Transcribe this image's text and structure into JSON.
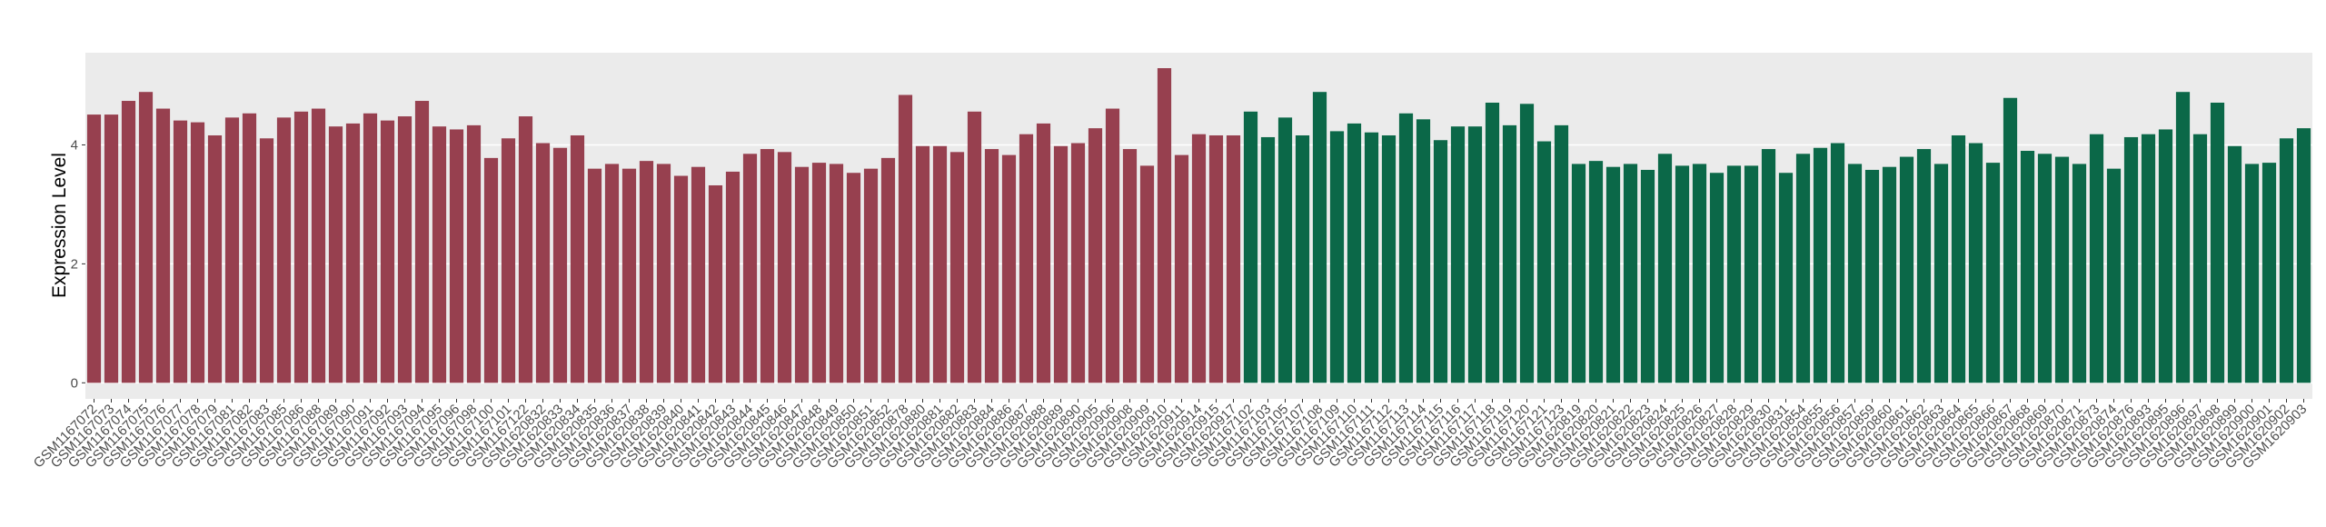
{
  "chart_data": {
    "type": "bar",
    "y_label": "Expression Level",
    "categories": [
      "GSM1167072",
      "GSM1167073",
      "GSM1167074",
      "GSM1167075",
      "GSM1167076",
      "GSM1167077",
      "GSM1167078",
      "GSM1167079",
      "GSM1167081",
      "GSM1167082",
      "GSM1167083",
      "GSM1167085",
      "GSM1167086",
      "GSM1167088",
      "GSM1167089",
      "GSM1167090",
      "GSM1167091",
      "GSM1167092",
      "GSM1167093",
      "GSM1167094",
      "GSM1167095",
      "GSM1167096",
      "GSM1167098",
      "GSM1167100",
      "GSM1167101",
      "GSM1167122",
      "GSM1620832",
      "GSM1620833",
      "GSM1620834",
      "GSM1620835",
      "GSM1620836",
      "GSM1620837",
      "GSM1620838",
      "GSM1620839",
      "GSM1620840",
      "GSM1620841",
      "GSM1620842",
      "GSM1620843",
      "GSM1620844",
      "GSM1620845",
      "GSM1620846",
      "GSM1620847",
      "GSM1620848",
      "GSM1620849",
      "GSM1620850",
      "GSM1620851",
      "GSM1620852",
      "GSM1620878",
      "GSM1620880",
      "GSM1620881",
      "GSM1620882",
      "GSM1620883",
      "GSM1620884",
      "GSM1620886",
      "GSM1620887",
      "GSM1620888",
      "GSM1620889",
      "GSM1620890",
      "GSM1620905",
      "GSM1620906",
      "GSM1620908",
      "GSM1620909",
      "GSM1620910",
      "GSM1620911",
      "GSM1620914",
      "GSM1620915",
      "GSM1620917",
      "GSM1167102",
      "GSM1167103",
      "GSM1167105",
      "GSM1167107",
      "GSM1167108",
      "GSM1167109",
      "GSM1167110",
      "GSM1167111",
      "GSM1167112",
      "GSM1167113",
      "GSM1167114",
      "GSM1167115",
      "GSM1167116",
      "GSM1167117",
      "GSM1167118",
      "GSM1167119",
      "GSM1167120",
      "GSM1167121",
      "GSM1167123",
      "GSM1620819",
      "GSM1620820",
      "GSM1620821",
      "GSM1620822",
      "GSM1620823",
      "GSM1620824",
      "GSM1620825",
      "GSM1620826",
      "GSM1620827",
      "GSM1620828",
      "GSM1620829",
      "GSM1620830",
      "GSM1620831",
      "GSM1620854",
      "GSM1620855",
      "GSM1620856",
      "GSM1620857",
      "GSM1620859",
      "GSM1620860",
      "GSM1620861",
      "GSM1620862",
      "GSM1620863",
      "GSM1620864",
      "GSM1620865",
      "GSM1620866",
      "GSM1620867",
      "GSM1620868",
      "GSM1620869",
      "GSM1620870",
      "GSM1620871",
      "GSM1620873",
      "GSM1620874",
      "GSM1620876",
      "GSM1620893",
      "GSM1620895",
      "GSM1620896",
      "GSM1620897",
      "GSM1620898",
      "GSM1620899",
      "GSM1620900",
      "GSM1620901",
      "GSM1620902",
      "GSM1620903"
    ],
    "series": [
      {
        "color": "#97404f",
        "values": [
          4.51,
          4.51,
          4.74,
          4.89,
          4.61,
          4.41,
          4.38,
          4.16,
          4.46,
          4.53,
          4.11,
          4.46,
          4.56,
          4.61,
          4.31,
          4.36,
          4.53,
          4.41,
          4.48,
          4.74,
          4.31,
          4.26,
          4.33,
          3.78,
          4.11,
          4.48,
          4.03,
          3.95,
          4.16,
          3.6,
          3.68,
          3.6,
          3.73,
          3.68,
          3.48,
          3.63,
          3.32,
          3.55,
          3.85,
          3.93,
          3.88,
          3.63,
          3.7,
          3.68,
          3.53,
          3.6,
          3.78,
          4.84,
          3.98,
          3.98,
          3.88,
          4.56,
          3.93,
          3.83,
          4.18,
          4.36,
          3.98,
          4.03,
          4.28,
          4.61,
          3.93,
          3.65,
          5.29,
          3.83,
          4.18,
          4.16,
          4.16,
          null,
          null,
          null,
          null,
          null,
          null,
          null,
          null,
          null,
          null,
          null,
          null,
          null,
          null,
          null,
          null,
          null,
          null,
          null,
          null,
          null,
          null,
          null,
          null,
          null,
          null,
          null,
          null,
          null,
          null,
          null,
          null,
          null,
          null,
          null,
          null,
          null,
          null,
          null,
          null,
          null,
          null,
          null,
          null,
          null,
          null,
          null,
          null,
          null,
          null,
          null,
          null,
          null,
          null,
          null,
          null,
          null,
          null,
          null,
          null,
          null,
          null
        ]
      },
      {
        "color": "#0b6848",
        "values": [
          null,
          null,
          null,
          null,
          null,
          null,
          null,
          null,
          null,
          null,
          null,
          null,
          null,
          null,
          null,
          null,
          null,
          null,
          null,
          null,
          null,
          null,
          null,
          null,
          null,
          null,
          null,
          null,
          null,
          null,
          null,
          null,
          null,
          null,
          null,
          null,
          null,
          null,
          null,
          null,
          null,
          null,
          null,
          null,
          null,
          null,
          null,
          null,
          null,
          null,
          null,
          null,
          null,
          null,
          null,
          null,
          null,
          null,
          null,
          null,
          null,
          null,
          null,
          null,
          null,
          null,
          null,
          4.56,
          4.13,
          4.46,
          4.16,
          4.89,
          4.23,
          4.36,
          4.21,
          4.16,
          4.53,
          4.43,
          4.08,
          4.31,
          4.31,
          4.71,
          4.33,
          4.69,
          4.06,
          4.33,
          3.68,
          3.73,
          3.63,
          3.68,
          3.58,
          3.85,
          3.65,
          3.68,
          3.53,
          3.65,
          3.65,
          3.93,
          3.53,
          3.85,
          3.95,
          4.03,
          3.68,
          3.58,
          3.63,
          3.8,
          3.93,
          3.68,
          4.16,
          4.03,
          3.7,
          4.79,
          3.9,
          3.85,
          3.8,
          3.68,
          4.18,
          3.6,
          4.13,
          4.18,
          4.26,
          4.89,
          4.18,
          4.71,
          3.98,
          3.68,
          3.7,
          4.11,
          4.28
        ]
      }
    ],
    "ylim": [
      -0.27,
      5.55
    ],
    "yticks": [
      0,
      2,
      4
    ],
    "grid": true
  }
}
